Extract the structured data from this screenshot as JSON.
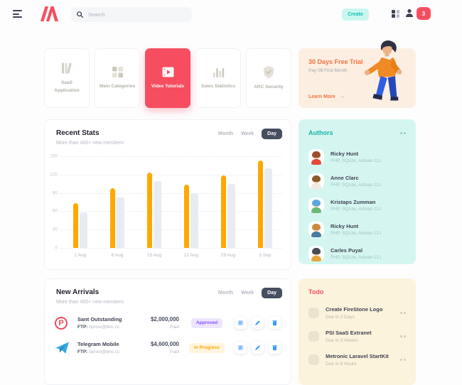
{
  "colors": {
    "primary_red": "#f64e60",
    "teal": "#1bc5bd",
    "orange": "#ffa800",
    "blue": "#3699ff",
    "purple": "#8950fc"
  },
  "header": {
    "search_placeholder": "Search",
    "create_label": "Create",
    "notification_count": "3"
  },
  "categories": {
    "items": [
      {
        "label": "SaaS Application"
      },
      {
        "label": "Main Categories"
      },
      {
        "label": "Video Tutorials"
      },
      {
        "label": "Sales Statistics"
      },
      {
        "label": "ARC Security"
      }
    ],
    "active_index": 2
  },
  "trial": {
    "title": "30 Days Free Trial",
    "subtitle": "Pay 0$ First Month",
    "cta": "Learn More"
  },
  "recent_stats": {
    "title": "Recent Stats",
    "subtitle": "More than 400+ new members",
    "filters": {
      "month": "Month",
      "week": "Week",
      "day": "Day"
    },
    "active_filter": "Day"
  },
  "chart_data": {
    "type": "bar",
    "title": "Recent Stats",
    "categories": [
      "1 Aug",
      "8 Aug",
      "15 Aug",
      "22 Aug",
      "29 Aug",
      "5 Sep"
    ],
    "series": [
      {
        "name": "current",
        "color": "#ffa800",
        "values": [
          73,
          98,
          123,
          103,
          119,
          143
        ]
      },
      {
        "name": "previous",
        "color": "#e9ebf2",
        "values": [
          58,
          83,
          109,
          89,
          105,
          130
        ]
      }
    ],
    "xlabel": "",
    "ylabel": "",
    "ylim": [
      0,
      150
    ],
    "y_ticks": [
      150,
      120,
      90,
      60,
      30,
      0
    ],
    "grid": "dotted-horizontal",
    "legend": "none"
  },
  "authors": {
    "title": "Authors",
    "items": [
      {
        "name": "Ricky Hunt",
        "skills": "PHP, SQLite, Artisan CLI",
        "avatar": {
          "hair": "#9a512e",
          "shirt": "#e5493a",
          "skin": "#f2c29b"
        }
      },
      {
        "name": "Anne Clarc",
        "skills": "PHP, SQLite, Artisan CLI",
        "avatar": {
          "hair": "#8a5a2b",
          "shirt": "#f1e8e2",
          "skin": "#f2c29b"
        }
      },
      {
        "name": "Kristaps Zumman",
        "skills": "PHP, SQLite, Artisan CLI",
        "avatar": {
          "hair": "#5aa7e0",
          "shirt": "#6cb87a",
          "skin": "#f2c29b"
        }
      },
      {
        "name": "Ricky Hunt",
        "skills": "PHP, SQLite, Artisan CLI",
        "avatar": {
          "hair": "#c98a3d",
          "shirt": "#49799f",
          "skin": "#f2c29b"
        }
      },
      {
        "name": "Carles Puyal",
        "skills": "PHP, SQLite, Artisan CLI",
        "avatar": {
          "hair": "#4a4a52",
          "shirt": "#e8a33d",
          "skin": "#f2c29b"
        }
      }
    ]
  },
  "new_arrivals": {
    "title": "New Arrivals",
    "subtitle": "More than 400+ new members",
    "filters": {
      "month": "Month",
      "week": "Week",
      "day": "Day"
    },
    "active_filter": "Day",
    "rows": [
      {
        "name": "Sant Outstanding",
        "ftp_label": "FTP:",
        "ftp": "bprow@bnc.cc",
        "amount": "$2,000,000",
        "amount_sub": "Paid",
        "status": "Approved",
        "logo": "producthunt-logo",
        "logo_letter": "P"
      },
      {
        "name": "Telegram Mobile",
        "ftp_label": "FTP:",
        "ftp": "bprow@bnc.cc",
        "amount": "$4,600,000",
        "amount_sub": "Paid",
        "status": "In Progress",
        "logo": "telegram-logo",
        "logo_letter": ""
      }
    ]
  },
  "todo": {
    "title": "Todo",
    "items": [
      {
        "title": "Create FireStone Logo",
        "due": "Due in 2 Days"
      },
      {
        "title": "PSI SaaS Extranet",
        "due": "Due in 3 Weeks"
      },
      {
        "title": "Metronic Laravel StartKit",
        "due": "Due in 5 Hours"
      }
    ]
  }
}
